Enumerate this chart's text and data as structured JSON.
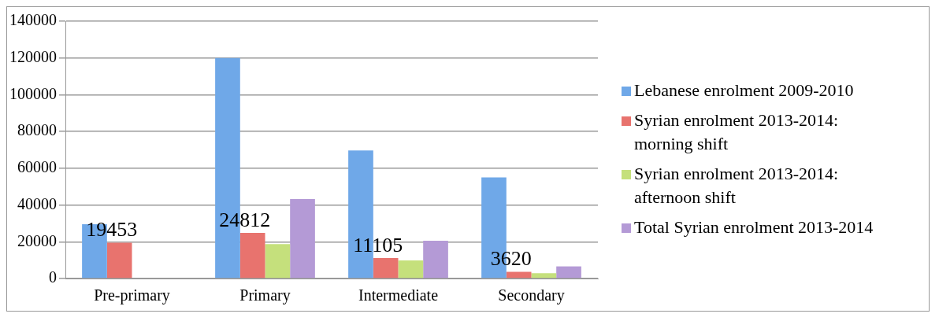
{
  "chart_data": {
    "type": "bar",
    "categories": [
      "Pre-primary",
      "Primary",
      "Intermediate",
      "Secondary"
    ],
    "series": [
      {
        "name": "Lebanese enrolment 2009-2010",
        "color": "#6fa8e8",
        "values": [
          29500,
          120000,
          69700,
          55000
        ]
      },
      {
        "name": "Syrian enrolment 2013-2014: morning shift",
        "color": "#e8736e",
        "values": [
          19453,
          24812,
          11105,
          3620
        ],
        "value_labels": [
          "19453",
          "24812",
          "11105",
          "3620"
        ]
      },
      {
        "name": "Syrian enrolment 2013-2014: afternoon shift",
        "color": "#c5e07c",
        "values": [
          null,
          18700,
          9800,
          2900
        ]
      },
      {
        "name": "Total Syrian enrolment 2013-2014",
        "color": "#b49ad6",
        "values": [
          null,
          43200,
          20600,
          6600
        ]
      }
    ],
    "ylim": [
      0,
      140000
    ],
    "yticks": [
      0,
      20000,
      40000,
      60000,
      80000,
      100000,
      120000,
      140000
    ],
    "grid": "y",
    "legend": "right"
  }
}
